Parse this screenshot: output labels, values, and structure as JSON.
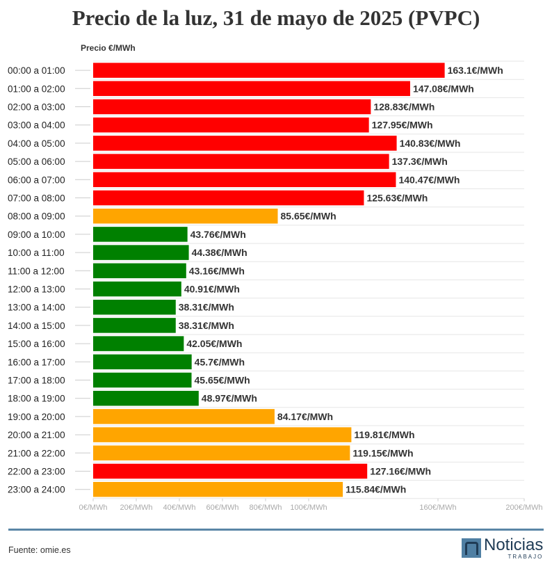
{
  "title": "Precio de la luz, 31 de mayo de 2025 (PVPC)",
  "footer": {
    "source": "Fuente: omie.es"
  },
  "logo": {
    "main": "Noticias",
    "sub": "TRABAJO"
  },
  "colors": {
    "high": "#ff0000",
    "mid": "#ffa500",
    "low": "#008000",
    "grid": "#e6e6e6",
    "divider": "#5a86a6"
  },
  "chart_data": {
    "type": "bar",
    "orientation": "horizontal",
    "title": "Precio de la luz, 31 de mayo de 2025 (PVPC)",
    "xlabel": "Precio €/MWh",
    "xlim": [
      0,
      200
    ],
    "grid": true,
    "ticks": [
      {
        "value": 0,
        "label": "0€/MWh"
      },
      {
        "value": 20,
        "label": "20€/MWh"
      },
      {
        "value": 40,
        "label": "40€/MWh"
      },
      {
        "value": 60,
        "label": "60€/MWh"
      },
      {
        "value": 80,
        "label": "80€/MWh"
      },
      {
        "value": 100,
        "label": "100€/MWh"
      },
      {
        "value": 160,
        "label": "160€/MWh"
      },
      {
        "value": 200,
        "label": "200€/MWh"
      }
    ],
    "value_suffix": "€/MWh",
    "categories": [
      "00:00 a 01:00",
      "01:00 a 02:00",
      "02:00 a 03:00",
      "03:00 a 04:00",
      "04:00 a 05:00",
      "05:00 a 06:00",
      "06:00 a 07:00",
      "07:00 a 08:00",
      "08:00 a 09:00",
      "09:00 a 10:00",
      "10:00 a 11:00",
      "11:00 a 12:00",
      "12:00 a 13:00",
      "13:00 a 14:00",
      "14:00 a 15:00",
      "15:00 a 16:00",
      "16:00 a 17:00",
      "17:00 a 18:00",
      "18:00 a 19:00",
      "19:00 a 20:00",
      "20:00 a 21:00",
      "21:00 a 22:00",
      "22:00 a 23:00",
      "23:00 a 24:00"
    ],
    "values": [
      163.1,
      147.08,
      128.83,
      127.95,
      140.83,
      137.3,
      140.47,
      125.63,
      85.65,
      43.76,
      44.38,
      43.16,
      40.91,
      38.31,
      38.31,
      42.05,
      45.7,
      45.65,
      48.97,
      84.17,
      119.81,
      119.15,
      127.16,
      115.84
    ],
    "value_labels": [
      "163.1€/MWh",
      "147.08€/MWh",
      "128.83€/MWh",
      "127.95€/MWh",
      "140.83€/MWh",
      "137.3€/MWh",
      "140.47€/MWh",
      "125.63€/MWh",
      "85.65€/MWh",
      "43.76€/MWh",
      "44.38€/MWh",
      "43.16€/MWh",
      "40.91€/MWh",
      "38.31€/MWh",
      "38.31€/MWh",
      "42.05€/MWh",
      "45.7€/MWh",
      "45.65€/MWh",
      "48.97€/MWh",
      "84.17€/MWh",
      "119.81€/MWh",
      "119.15€/MWh",
      "127.16€/MWh",
      "115.84€/MWh"
    ],
    "bar_colors": [
      "#ff0000",
      "#ff0000",
      "#ff0000",
      "#ff0000",
      "#ff0000",
      "#ff0000",
      "#ff0000",
      "#ff0000",
      "#ffa500",
      "#008000",
      "#008000",
      "#008000",
      "#008000",
      "#008000",
      "#008000",
      "#008000",
      "#008000",
      "#008000",
      "#008000",
      "#ffa500",
      "#ffa500",
      "#ffa500",
      "#ff0000",
      "#ffa500"
    ]
  }
}
